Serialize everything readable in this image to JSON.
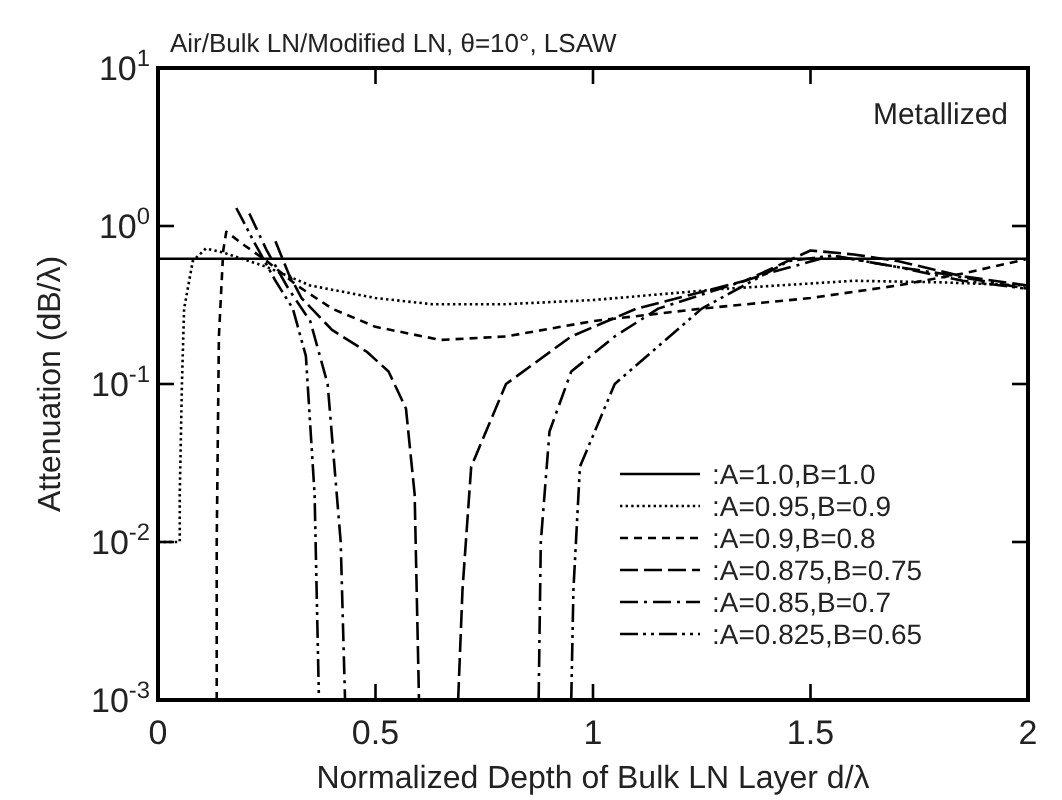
{
  "chart_data": {
    "type": "line",
    "title": "Air/Bulk LN/Modified LN, θ=10°, LSAW",
    "xlabel": "Normalized Depth of Bulk LN Layer d/λ",
    "ylabel": "Attenuation (dB/λ)",
    "annotations": [
      "Metallized"
    ],
    "log": true,
    "grid": false,
    "legend": "bottom right",
    "xlim": [
      0,
      2
    ],
    "xticks": [
      0,
      0.5,
      1,
      1.5,
      2
    ],
    "ylim": [
      0.001,
      10
    ],
    "yticks": [
      {
        "value": 0.001,
        "label": "10$^{-3}$"
      },
      {
        "value": 0.01,
        "label": "10$^{-2}$"
      },
      {
        "value": 0.1,
        "label": "10$^{-1}$"
      },
      {
        "value": 1,
        "label": "10$^{0}$"
      },
      {
        "value": 10,
        "label": "10$^{1}$"
      }
    ],
    "series": [
      {
        "name": ":A=1.0,B=1.0",
        "color": "#000000",
        "line_style": "solid",
        "x": [
          0,
          2
        ],
        "values": [
          0.62,
          0.62
        ]
      },
      {
        "name": ":A=0.95,B=0.9",
        "color": "#000000",
        "line_style": "dotted",
        "x": [
          0,
          0.05,
          0.05,
          0.055,
          0.06,
          0.08,
          0.11,
          0.15,
          0.25,
          0.35,
          0.5,
          0.63,
          0.8,
          1,
          1.3,
          1.6,
          1.8,
          2
        ],
        "values": [
          0.01,
          0.01,
          0.02,
          0.1,
          0.3,
          0.6,
          0.72,
          0.68,
          0.55,
          0.42,
          0.35,
          0.32,
          0.32,
          0.34,
          0.4,
          0.45,
          0.44,
          0.42
        ]
      },
      {
        "name": ":A=0.9,B=0.8",
        "color": "#000000",
        "line_style": "dashed",
        "x": [
          0.135,
          0.135,
          0.14,
          0.15,
          0.157,
          0.2,
          0.25,
          0.32,
          0.4,
          0.5,
          0.65,
          0.8,
          1,
          1.25,
          1.5,
          1.7,
          1.85,
          2
        ],
        "values": [
          0.001,
          0.01,
          0.2,
          0.7,
          0.92,
          0.75,
          0.6,
          0.42,
          0.3,
          0.23,
          0.19,
          0.2,
          0.25,
          0.3,
          0.35,
          0.42,
          0.5,
          0.62
        ]
      },
      {
        "name": ":A=0.875,B=0.75",
        "color": "#000000",
        "line_style": "longdash",
        "x": [
          0.27,
          0.3,
          0.33,
          0.4,
          0.48,
          0.53,
          0.57,
          0.59,
          0.6,
          null,
          0.69,
          0.7,
          0.72,
          0.8,
          0.95,
          1.1,
          1.35,
          1.5,
          1.6,
          1.7,
          1.85,
          2
        ],
        "values": [
          0.8,
          0.5,
          0.35,
          0.22,
          0.16,
          0.12,
          0.07,
          0.02,
          0.001,
          null,
          0.001,
          0.005,
          0.03,
          0.1,
          0.2,
          0.3,
          0.45,
          0.7,
          0.66,
          0.6,
          0.48,
          0.42
        ]
      },
      {
        "name": ":A=0.85,B=0.7",
        "color": "#000000",
        "line_style": "dashdot",
        "x": [
          0.21,
          0.25,
          0.3,
          0.35,
          0.39,
          0.42,
          0.43,
          null,
          0.875,
          0.88,
          0.9,
          0.95,
          1.05,
          1.15,
          1.4,
          1.55,
          1.7,
          1.8,
          2
        ],
        "values": [
          1.2,
          0.7,
          0.4,
          0.25,
          0.1,
          0.01,
          0.001,
          null,
          0.001,
          0.01,
          0.05,
          0.12,
          0.2,
          0.3,
          0.5,
          0.65,
          0.55,
          0.5,
          0.4
        ]
      },
      {
        "name": ":A=0.825,B=0.65",
        "color": "#000000",
        "line_style": "dashdotdot",
        "x": [
          0.18,
          0.22,
          0.27,
          0.31,
          0.34,
          0.36,
          0.37,
          null,
          0.95,
          0.955,
          0.97,
          1.05,
          1.25,
          1.45,
          1.55,
          1.7,
          1.85,
          2
        ],
        "values": [
          1.3,
          0.8,
          0.45,
          0.3,
          0.15,
          0.02,
          0.001,
          null,
          0.001,
          0.005,
          0.03,
          0.1,
          0.3,
          0.6,
          0.65,
          0.55,
          0.45,
          0.4
        ]
      }
    ]
  }
}
